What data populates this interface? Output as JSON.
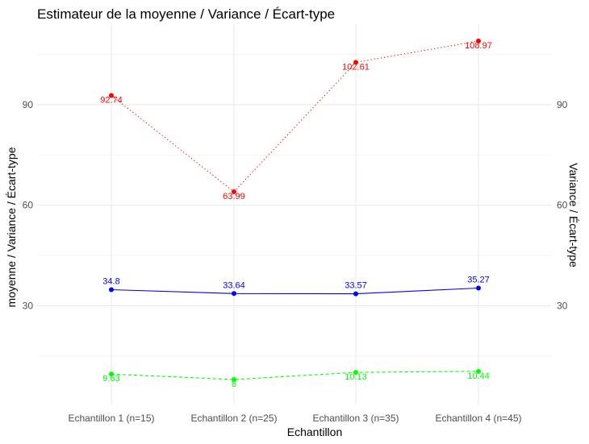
{
  "chart_data": {
    "type": "line",
    "title": "Estimateur de la moyenne / Variance / Écart-type",
    "xlabel": "Echantillon",
    "ylabel": "moyenne / Variance / Écart-type",
    "ylabel_right": "Variance / Écart-type",
    "categories": [
      "Echantillon 1 (n=15)",
      "Echantillon 2 (n=25)",
      "Echantillon 3 (n=35)",
      "Echantillon 4 (n=45)"
    ],
    "ylim": [
      0.3,
      114
    ],
    "yticks": [
      30,
      60,
      90
    ],
    "grid": true,
    "legend": "none",
    "series": [
      {
        "name": "Variance",
        "color": "#ff0000",
        "style": "dotted",
        "values": [
          92.74,
          63.99,
          102.61,
          108.97
        ],
        "labels": [
          "92.74",
          "63.99",
          "102.61",
          "108.97"
        ]
      },
      {
        "name": "Moyenne",
        "color": "#0000ff",
        "style": "solid",
        "values": [
          34.8,
          33.64,
          33.57,
          35.27
        ],
        "labels": [
          "34.8",
          "33.64",
          "33.57",
          "35.27"
        ]
      },
      {
        "name": "Écart-type",
        "color": "#00ff00",
        "style": "dashed",
        "values": [
          9.63,
          8.0,
          10.13,
          10.44
        ],
        "labels": [
          "9.63",
          "8",
          "10.13",
          "10.44"
        ]
      }
    ]
  }
}
